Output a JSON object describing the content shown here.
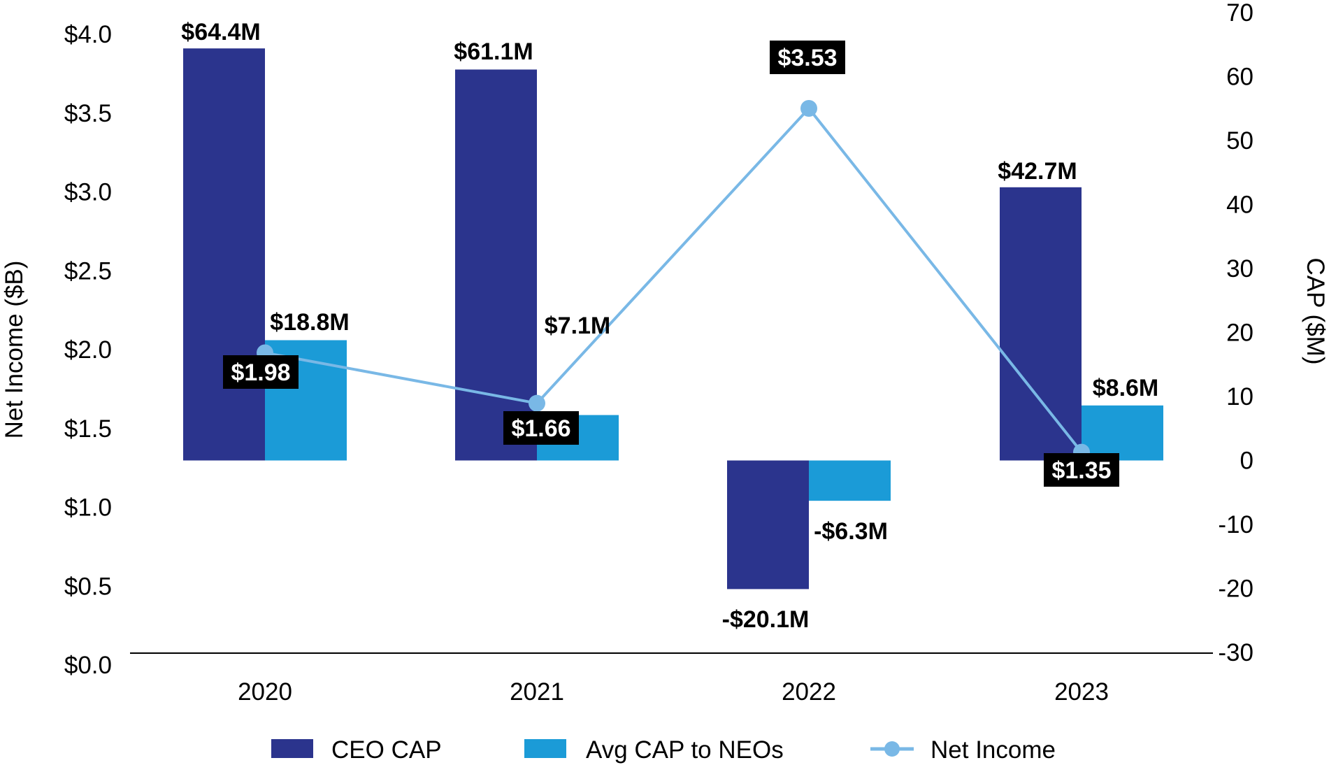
{
  "chart_data": {
    "type": "bar",
    "title": "",
    "categories": [
      "2020",
      "2021",
      "2022",
      "2023"
    ],
    "series": [
      {
        "name": "CEO CAP",
        "kind": "bar",
        "axis": "right",
        "color": "#2b348d",
        "values": [
          64.4,
          61.1,
          -20.1,
          42.7
        ],
        "labels": [
          "$64.4M",
          "$61.1M",
          "-$20.1M",
          "$42.7M"
        ]
      },
      {
        "name": "Avg CAP to NEOs",
        "kind": "bar",
        "axis": "right",
        "color": "#1b9bd7",
        "values": [
          18.8,
          7.1,
          -6.3,
          8.6
        ],
        "labels": [
          "$18.8M",
          "$7.1M",
          "-$6.3M",
          "$8.6M"
        ]
      },
      {
        "name": "Net Income",
        "kind": "line",
        "axis": "left",
        "color": "#79b8e6",
        "values": [
          1.98,
          1.66,
          3.53,
          1.35
        ],
        "labels": [
          "$1.98",
          "$1.66",
          "$3.53",
          "$1.35"
        ]
      }
    ],
    "left_axis": {
      "label": "Net Income ($B)",
      "ylim": [
        0,
        4.0
      ],
      "ticks": [
        "$0.0",
        "$0.5",
        "$1.0",
        "$1.5",
        "$2.0",
        "$2.5",
        "$3.0",
        "$3.5",
        "$4.0"
      ]
    },
    "right_axis": {
      "label": "CAP ($M)",
      "ylim": [
        -30,
        70
      ],
      "ticks": [
        "-30",
        "-20",
        "-10",
        "0",
        "10",
        "20",
        "30",
        "40",
        "50",
        "60",
        "70"
      ]
    },
    "xlabel": "",
    "grid": false,
    "legend": {
      "position": "bottom",
      "items": [
        "CEO CAP",
        "Avg CAP to NEOs",
        "Net Income"
      ]
    }
  }
}
